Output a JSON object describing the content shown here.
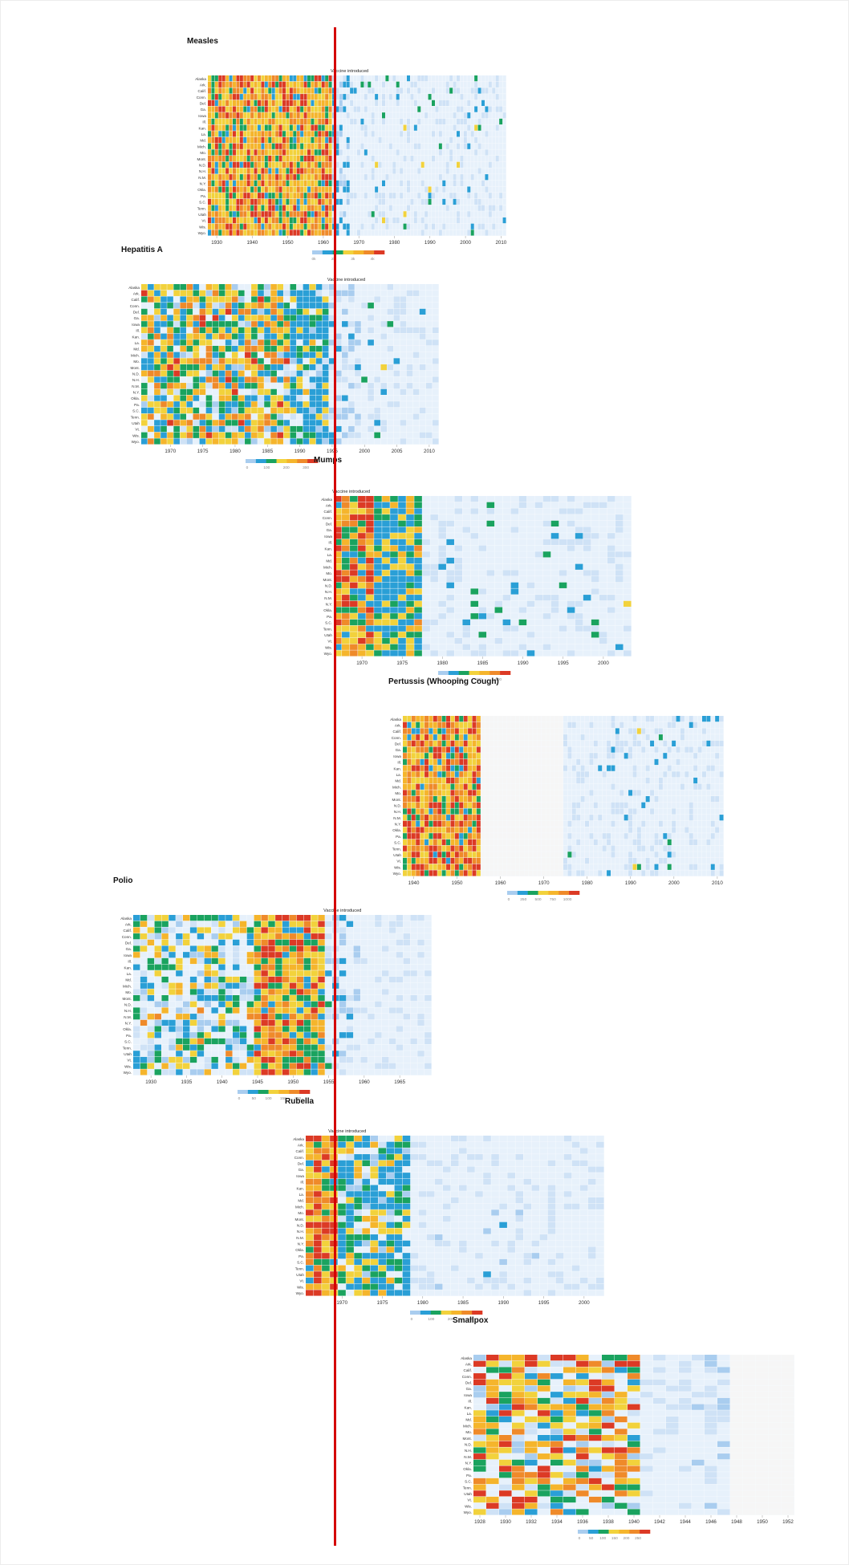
{
  "colors": {
    "scale": [
      "#e7f1fb",
      "#cfe2f6",
      "#a9cdef",
      "#2a9fd6",
      "#1aa35f",
      "#f2d23c",
      "#f5b52c",
      "#ef8a2a",
      "#dc3a25"
    ],
    "no_data": "#f6f6f6",
    "vaccine_line": "#d40000"
  },
  "vaccine_label": "Vaccine introduced",
  "states": [
    "Alaska",
    "Ark.",
    "Calif.",
    "Conn.",
    "Del.",
    "Ga.",
    "Iowa",
    "Ill.",
    "Kan.",
    "La.",
    "Md.",
    "Mich.",
    "Mo.",
    "Mont.",
    "N.D.",
    "N.H.",
    "N.M.",
    "N.Y.",
    "Okla.",
    "Pa.",
    "S.C.",
    "Tenn.",
    "Utah",
    "Vt.",
    "Wis.",
    "Wyo."
  ],
  "panels": [
    {
      "title": "Measles",
      "ticks": [
        "1930",
        "1940",
        "1950",
        "1960",
        "1970",
        "1980",
        "1990",
        "2000",
        "2010"
      ],
      "legend": [
        "0k",
        "2k",
        "3k",
        "4k"
      ],
      "vaccine_text": "Vaccine introduced"
    },
    {
      "title": "Hepatitis A",
      "ticks": [
        "1970",
        "1975",
        "1980",
        "1985",
        "1990",
        "1995",
        "2000",
        "2005",
        "2010"
      ],
      "legend": [
        "0",
        "100",
        "200",
        "300"
      ],
      "vaccine_text": "Vaccine introduced"
    },
    {
      "title": "Mumps",
      "ticks": [
        "1970",
        "1975",
        "1980",
        "1985",
        "1990",
        "1995",
        "2000"
      ],
      "legend": [
        "0",
        "200",
        "400",
        "600"
      ],
      "vaccine_text": "Vaccine introduced"
    },
    {
      "title": "Pertussis (Whooping Cough)",
      "ticks": [
        "1940",
        "1950",
        "1960",
        "1970",
        "1980",
        "1990",
        "2000",
        "2010"
      ],
      "legend": [
        "0",
        "250",
        "500",
        "750",
        "1000"
      ],
      "vaccine_text": ""
    },
    {
      "title": "Polio",
      "ticks": [
        "1930",
        "1935",
        "1940",
        "1945",
        "1950",
        "1955",
        "1960",
        "1965"
      ],
      "legend": [
        "0",
        "50",
        "100",
        "150",
        "200"
      ],
      "vaccine_text": "Vaccine introduced"
    },
    {
      "title": "Rubella",
      "ticks": [
        "1970",
        "1975",
        "1980",
        "1985",
        "1990",
        "1995",
        "2000"
      ],
      "legend": [
        "0",
        "100",
        "200",
        "300"
      ],
      "vaccine_text": "Vaccine introduced"
    },
    {
      "title": "Smallpox",
      "ticks": [
        "1928",
        "1930",
        "1932",
        "1934",
        "1936",
        "1938",
        "1940",
        "1942",
        "1944",
        "1946",
        "1948",
        "1950",
        "1952"
      ],
      "legend": [
        "0",
        "50",
        "100",
        "150",
        "200",
        "250"
      ],
      "vaccine_text": ""
    }
  ],
  "chart_data": [
    {
      "type": "heatmap",
      "title": "Measles",
      "rows": [
        "Alaska",
        "Ark.",
        "Calif.",
        "Conn.",
        "Del.",
        "Ga.",
        "Iowa",
        "Ill.",
        "Kan.",
        "La.",
        "Md.",
        "Mich.",
        "Mo.",
        "Mont.",
        "N.D.",
        "N.H.",
        "N.M.",
        "N.Y.",
        "Okla.",
        "Pa.",
        "S.C.",
        "Tenn.",
        "Utah",
        "Vt.",
        "Wis.",
        "Wyo."
      ],
      "x_range": [
        1928,
        2011
      ],
      "x_ticks": [
        1930,
        1940,
        1950,
        1960,
        1970,
        1980,
        1990,
        2000,
        2010
      ],
      "vaccine_year": 1963,
      "legend_ticks": [
        "0k",
        "2k",
        "3k",
        "4k"
      ],
      "pattern": "high incidence (teal/green/yellow/orange) for all states until about 1963, then mostly pale blue"
    },
    {
      "type": "heatmap",
      "title": "Hepatitis A",
      "rows": [
        "Alaska",
        "Ark.",
        "Calif.",
        "Conn.",
        "Del.",
        "Ga.",
        "Iowa",
        "Ill.",
        "Kan.",
        "La.",
        "Md.",
        "Mich.",
        "Mo.",
        "Mont.",
        "N.D.",
        "N.H.",
        "N.M.",
        "N.Y.",
        "Okla.",
        "Pa.",
        "S.C.",
        "Tenn.",
        "Utah",
        "Vt.",
        "Wis.",
        "Wyo."
      ],
      "x_range": [
        1966,
        2011
      ],
      "x_ticks": [
        1970,
        1975,
        1980,
        1985,
        1990,
        1995,
        2000,
        2005,
        2010
      ],
      "vaccine_year": 1995,
      "legend_ticks": [
        "0",
        "100",
        "200",
        "300"
      ],
      "pattern": "moderate-to-high incidence until the mid-1990s, pale blue after"
    },
    {
      "type": "heatmap",
      "title": "Mumps",
      "rows": [
        "Alaska",
        "Ark.",
        "Calif.",
        "Conn.",
        "Del.",
        "Ga.",
        "Iowa",
        "Ill.",
        "Kan.",
        "La.",
        "Md.",
        "Mich.",
        "Mo.",
        "Mont.",
        "N.D.",
        "N.H.",
        "N.M.",
        "N.Y.",
        "Okla.",
        "Pa.",
        "S.C.",
        "Tenn.",
        "Utah",
        "Vt.",
        "Wis.",
        "Wyo."
      ],
      "x_range": [
        1967,
        2003
      ],
      "x_ticks": [
        1970,
        1975,
        1980,
        1985,
        1990,
        1995,
        2000
      ],
      "vaccine_year": 1967,
      "legend_ticks": [
        "0",
        "200",
        "400",
        "600"
      ],
      "pattern": "high incidence in late 1960s and early 1970s, falling to pale blue after ~1978"
    },
    {
      "type": "heatmap",
      "title": "Pertussis (Whooping Cough)",
      "rows": [
        "Alaska",
        "Ark.",
        "Calif.",
        "Conn.",
        "Del.",
        "Ga.",
        "Iowa",
        "Ill.",
        "Kan.",
        "La.",
        "Md.",
        "Mich.",
        "Mo.",
        "Mont.",
        "N.D.",
        "N.H.",
        "N.M.",
        "N.Y.",
        "Okla.",
        "Pa.",
        "S.C.",
        "Tenn.",
        "Utah",
        "Vt.",
        "Wis.",
        "Wyo."
      ],
      "x_range": [
        1938,
        2011
      ],
      "x_ticks": [
        1940,
        1950,
        1960,
        1970,
        1980,
        1990,
        2000,
        2010
      ],
      "no_data_range": [
        1956,
        1974
      ],
      "legend_ticks": [
        "0",
        "250",
        "500",
        "750",
        "1000"
      ],
      "pattern": "high incidence 1938-1955, no data 1956-1974, low incidence after"
    },
    {
      "type": "heatmap",
      "title": "Polio",
      "rows": [
        "Alaska",
        "Ark.",
        "Calif.",
        "Conn.",
        "Del.",
        "Ga.",
        "Iowa",
        "Ill.",
        "Kan.",
        "La.",
        "Md.",
        "Mich.",
        "Mo.",
        "Mont.",
        "N.D.",
        "N.H.",
        "N.M.",
        "N.Y.",
        "Okla.",
        "Pa.",
        "S.C.",
        "Tenn.",
        "Utah",
        "Vt.",
        "Wis.",
        "Wyo."
      ],
      "x_range": [
        1928,
        1969
      ],
      "x_ticks": [
        1930,
        1935,
        1940,
        1945,
        1950,
        1955,
        1960,
        1965
      ],
      "vaccine_year": 1955,
      "legend_ticks": [
        "0",
        "50",
        "100",
        "150",
        "200"
      ],
      "pattern": "scattered incidence 1928-1945, peak 1946-1954, pale blue after 1955"
    },
    {
      "type": "heatmap",
      "title": "Rubella",
      "rows": [
        "Alaska",
        "Ark.",
        "Calif.",
        "Conn.",
        "Del.",
        "Ga.",
        "Iowa",
        "Ill.",
        "Kan.",
        "La.",
        "Md.",
        "Mich.",
        "Mo.",
        "Mont.",
        "N.D.",
        "N.H.",
        "N.M.",
        "N.Y.",
        "Okla.",
        "Pa.",
        "S.C.",
        "Tenn.",
        "Utah",
        "Vt.",
        "Wis.",
        "Wyo."
      ],
      "x_range": [
        1966,
        2002
      ],
      "x_ticks": [
        1970,
        1975,
        1980,
        1985,
        1990,
        1995,
        2000
      ],
      "vaccine_year": 1969,
      "legend_ticks": [
        "0",
        "100",
        "200",
        "300"
      ],
      "pattern": "high incidence 1966-1970, moderate until ~1979, pale blue after"
    },
    {
      "type": "heatmap",
      "title": "Smallpox",
      "rows": [
        "Alaska",
        "Ark.",
        "Calif.",
        "Conn.",
        "Del.",
        "Ga.",
        "Iowa",
        "Ill.",
        "Kan.",
        "La.",
        "Md.",
        "Mich.",
        "Mo.",
        "Mont.",
        "N.D.",
        "N.H.",
        "N.M.",
        "N.Y.",
        "Okla.",
        "Pa.",
        "S.C.",
        "Tenn.",
        "Utah",
        "Vt.",
        "Wis.",
        "Wyo."
      ],
      "x_range": [
        1928,
        1952
      ],
      "x_ticks": [
        1928,
        1930,
        1932,
        1934,
        1936,
        1938,
        1940,
        1942,
        1944,
        1946,
        1948,
        1950,
        1952
      ],
      "legend_ticks": [
        "0",
        "50",
        "100",
        "150",
        "200",
        "250"
      ],
      "pattern": "high incidence 1928-1940, low after, no data ~1948-1952"
    }
  ]
}
